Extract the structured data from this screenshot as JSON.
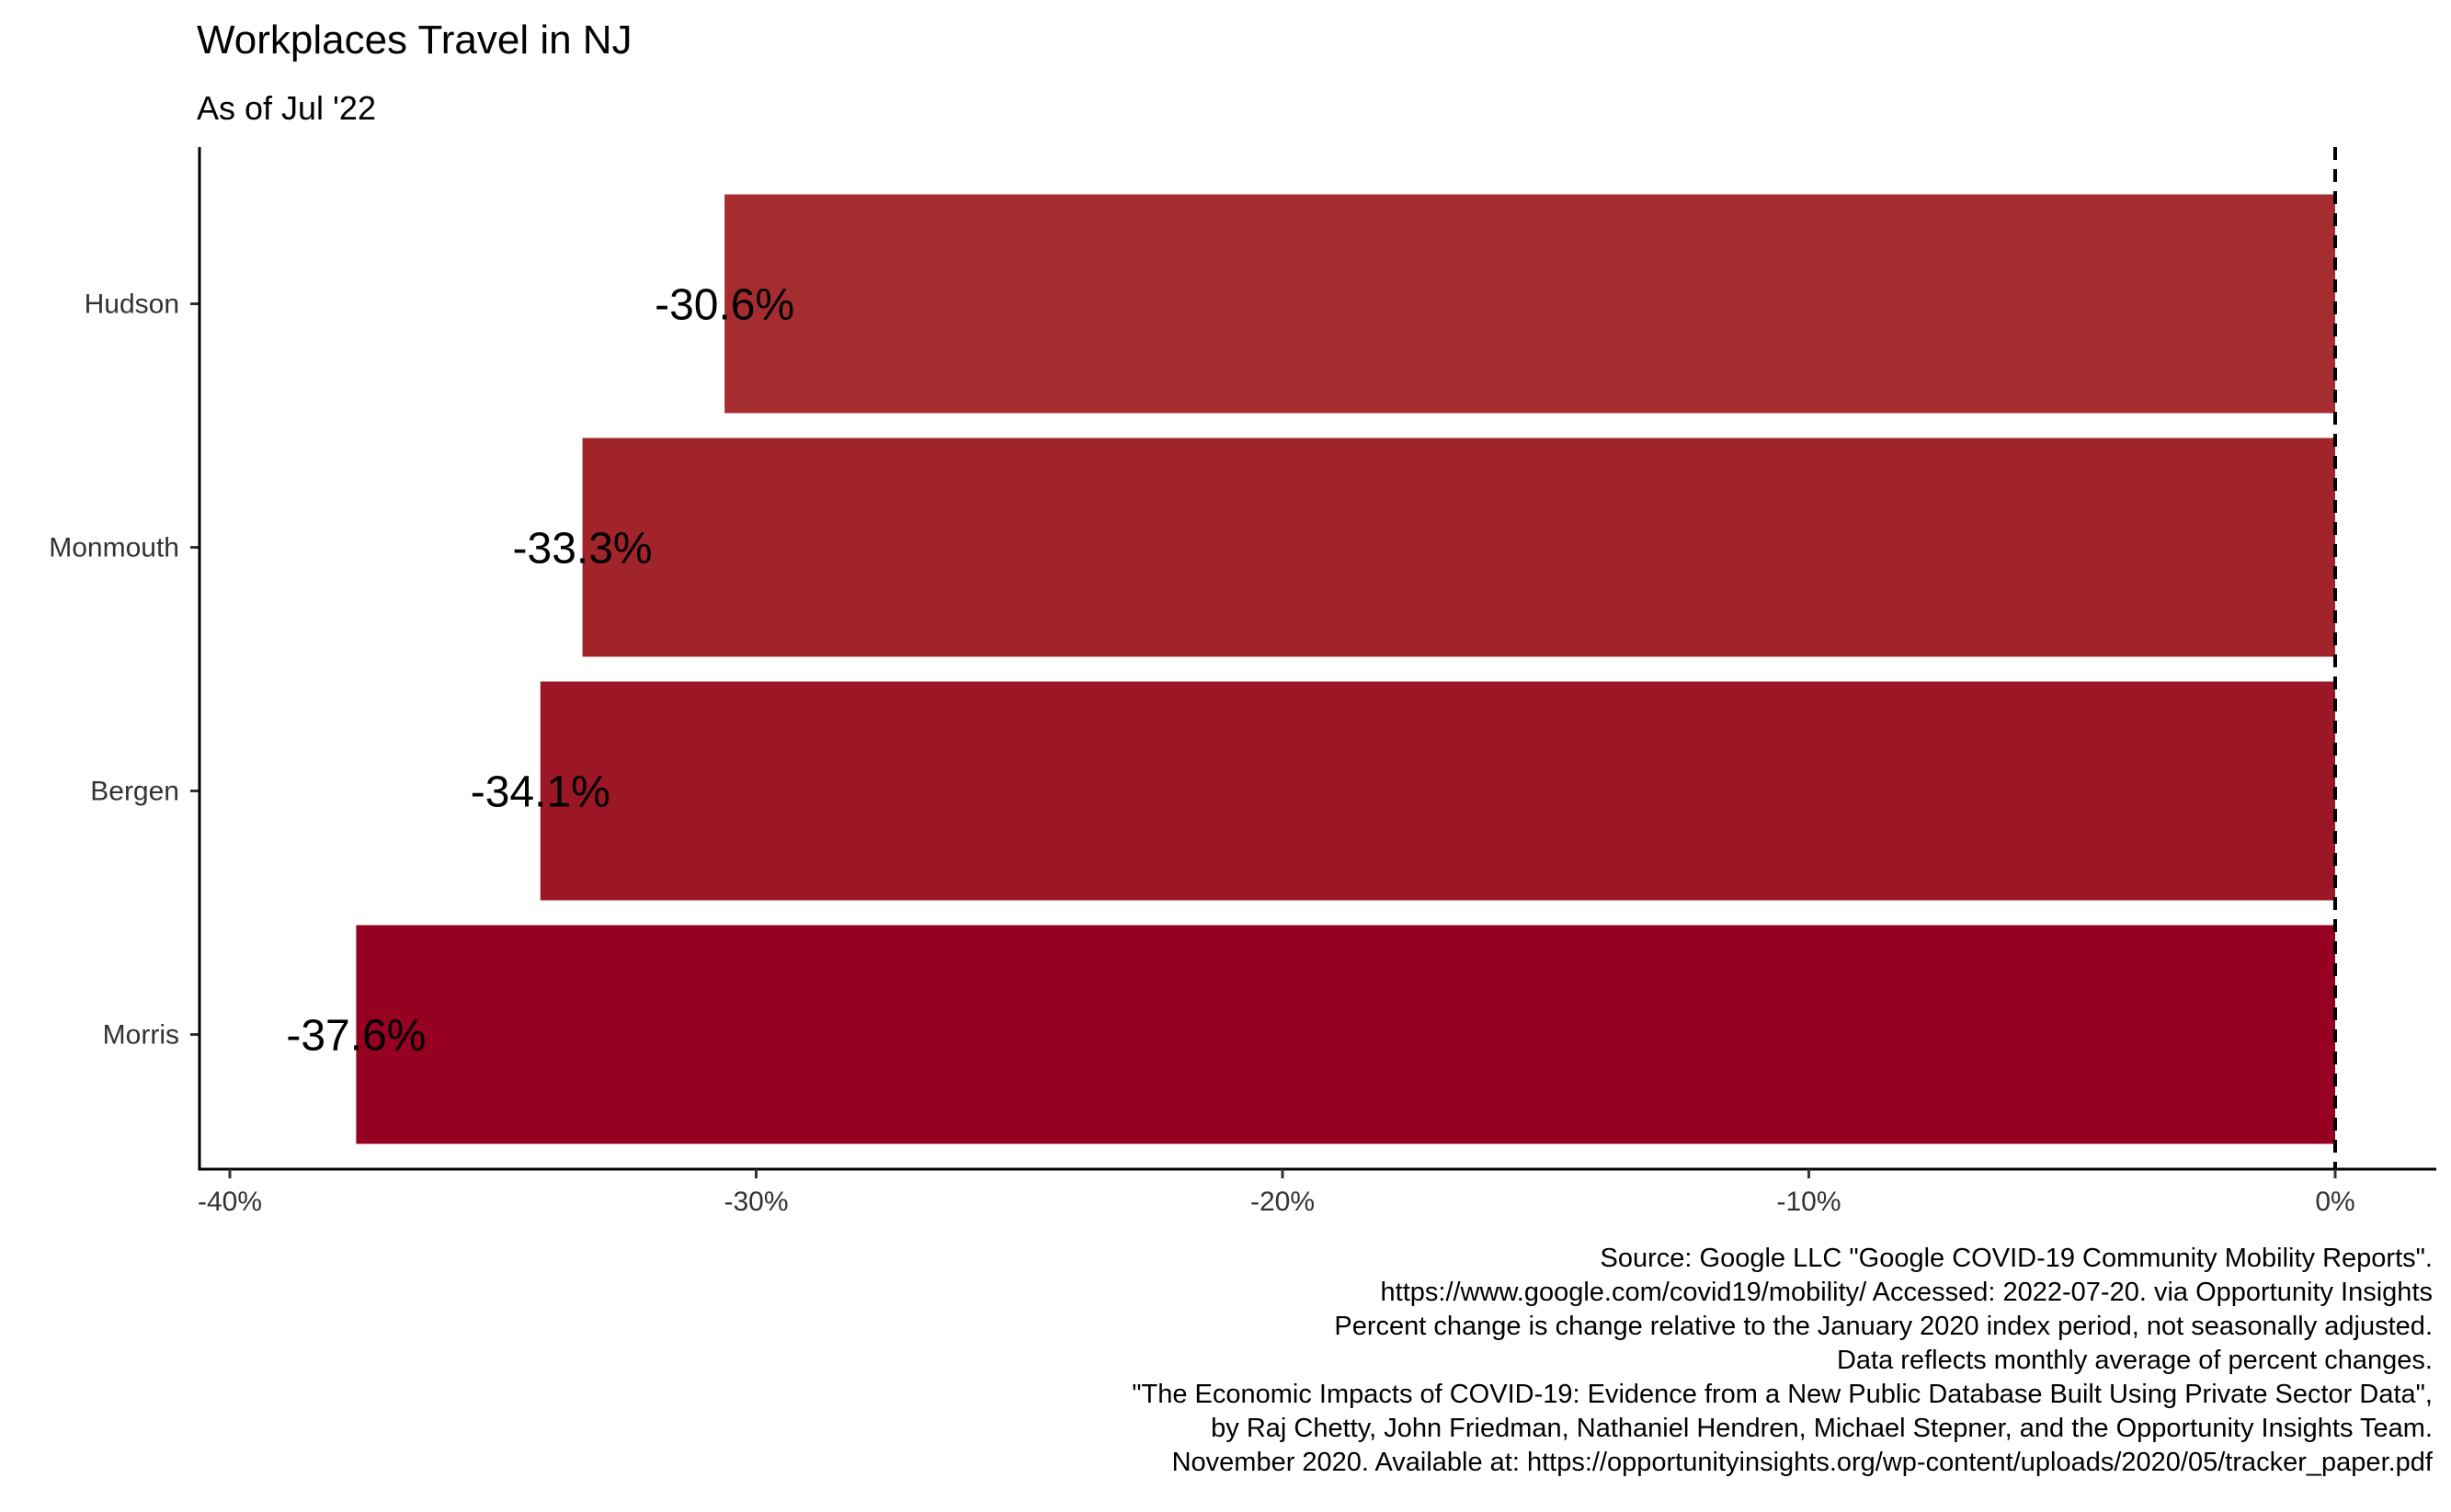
{
  "chart_data": {
    "type": "bar",
    "orientation": "horizontal",
    "title": "Workplaces Travel in NJ",
    "subtitle": "As of Jul '22",
    "categories": [
      "Hudson",
      "Monmouth",
      "Bergen",
      "Morris"
    ],
    "values": [
      -30.6,
      -33.3,
      -34.1,
      -37.6
    ],
    "value_labels": [
      "-30.6%",
      "-33.3%",
      "-34.1%",
      "-37.6%"
    ],
    "bar_colors": [
      "#a52d2f",
      "#a1242a",
      "#9b1726",
      "#960021"
    ],
    "xlim": [
      -40,
      0
    ],
    "xticks": [
      -40,
      -30,
      -20,
      -10,
      0
    ],
    "xtick_labels": [
      "-40%",
      "-30%",
      "-20%",
      "-10%",
      "0%"
    ],
    "reference_line": 0,
    "grid": false,
    "caption": [
      "Source: Google LLC \"Google COVID-19 Community Mobility Reports\".",
      "https://www.google.com/covid19/mobility/ Accessed: 2022-07-20. via Opportunity Insights",
      "Percent change is change relative to the January 2020 index period, not seasonally adjusted.",
      "Data reflects monthly average of percent changes.",
      "\"The Economic Impacts of COVID-19: Evidence from a New Public Database Built Using Private Sector Data\",",
      "by Raj Chetty, John Friedman, Nathaniel Hendren, Michael Stepner, and the Opportunity Insights Team.",
      "November 2020. Available at: https://opportunityinsights.org/wp-content/uploads/2020/05/tracker_paper.pdf"
    ]
  }
}
